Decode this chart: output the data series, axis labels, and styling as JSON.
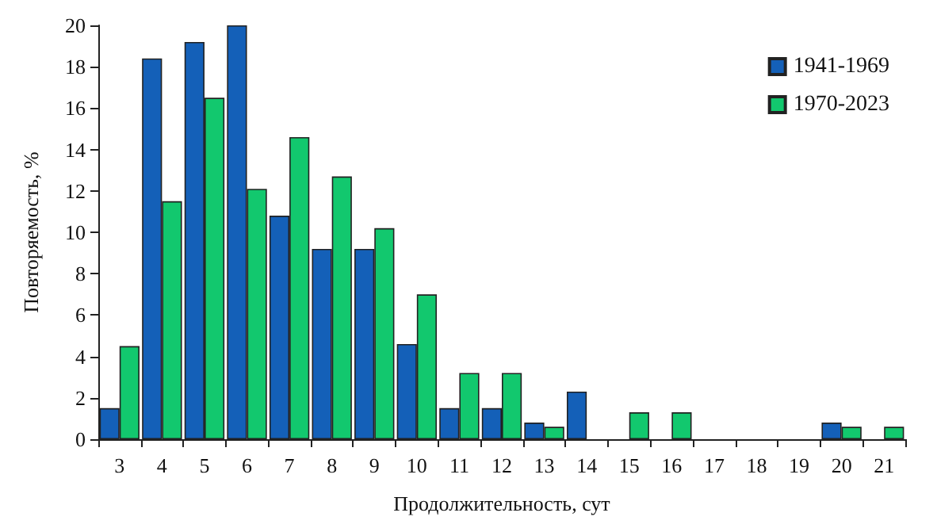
{
  "chart_data": {
    "type": "bar",
    "xlabel": "Продолжительность, сут",
    "ylabel": "Повторяемость, %",
    "categories": [
      "3",
      "4",
      "5",
      "6",
      "7",
      "8",
      "9",
      "10",
      "11",
      "12",
      "13",
      "14",
      "15",
      "16",
      "17",
      "18",
      "19",
      "20",
      "21"
    ],
    "series": [
      {
        "name": "1941-1969",
        "color": "#1460b8",
        "values": [
          1.5,
          18.4,
          19.2,
          20.0,
          10.8,
          9.2,
          9.2,
          4.6,
          1.5,
          1.5,
          0.8,
          2.3,
          0,
          0,
          0,
          0,
          0,
          0.8,
          0
        ]
      },
      {
        "name": "1970-2023",
        "color": "#12c86e",
        "values": [
          4.5,
          11.5,
          16.5,
          12.1,
          14.6,
          12.7,
          10.2,
          7.0,
          3.2,
          3.2,
          0.6,
          0,
          1.3,
          1.3,
          0,
          0,
          0,
          0.6,
          0.6
        ]
      }
    ],
    "ylim": [
      0,
      20
    ],
    "yticks": [
      0,
      2,
      4,
      6,
      8,
      10,
      12,
      14,
      16,
      18,
      20
    ],
    "grid": false,
    "legend": "top right"
  }
}
